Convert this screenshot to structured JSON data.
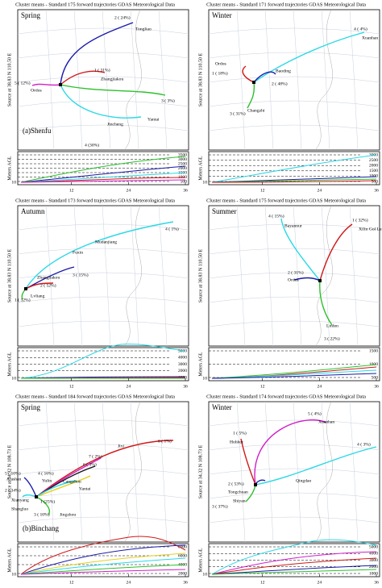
{
  "panels": [
    {
      "title": "Cluster means - Standard 175 forward trajectories GDAS Meteorological Data",
      "season": "Spring",
      "source_text": "Source   at   38.83 N   110.50 E",
      "site": "(a)Shenfu",
      "clusters": [
        "2 ( 24%)",
        "1 ( 31%)",
        "3 ( 3%)",
        "4 (30%)",
        "5 ( 12%)"
      ],
      "places": [
        "Tongliao",
        "Zhangjiakou",
        "Yantai",
        "Jincheng",
        "Ordos"
      ],
      "height_ticks": [
        "3500",
        "3000",
        "2500",
        "2000",
        "1500",
        "1000",
        "500"
      ],
      "x_ticks": [
        "12",
        "24",
        "36"
      ],
      "base": "10",
      "y_label": "Meters AGL"
    },
    {
      "title": "Cluster means - Standard 171 forward trajectories GDAS Meteorological Data",
      "season": "Winter",
      "source_text": "Source   at   38.83 N   110.50 E",
      "clusters": [
        "4 ( 4%)",
        "1 ( 18%)",
        "2 ( 48%)",
        "3 ( 31%)"
      ],
      "places": [
        "Xuanhan",
        "Ordos",
        "Baoding",
        "Changzhi"
      ],
      "height_ticks": [
        "3000",
        "2500",
        "2000",
        "1500",
        "1000",
        "500"
      ],
      "x_ticks": [
        "12",
        "24",
        "36"
      ],
      "base": "10",
      "y_label": "Meters AGL"
    },
    {
      "title": "Cluster means - Standard 173 forward trajectories GDAS Meteorological Data",
      "season": "Autumn",
      "source_text": "Source   at   38.83 N   110.50 E",
      "clusters": [
        "4 ( 1%)",
        "3 ( 15%)",
        "2 ( 52%)",
        "1 ( 32%)"
      ],
      "places": [
        "Mudanjiang",
        "Fuxin",
        "Zhangjiakou",
        "Lvliang"
      ],
      "height_ticks": [
        "5000",
        "4000",
        "3000",
        "2000",
        "1000"
      ],
      "x_ticks": [
        "12",
        "24",
        "36"
      ],
      "base": "10",
      "y_label": "Meters AGL"
    },
    {
      "title": "Cluster means - Standard 175 forward trajectories GDAS Meteorological Data",
      "season": "Summer",
      "source_text": "Source   at   38.83 N   110.50 E",
      "clusters": [
        "4 ( 15%)",
        "1 ( 32%)",
        "2 ( 31%)",
        "3 ( 22%)"
      ],
      "places": [
        "Bayannur",
        "Xilin Gol League",
        "Ordos",
        "Linfen"
      ],
      "height_ticks": [
        "1500",
        "1000",
        "500"
      ],
      "x_ticks": [
        "12",
        "24",
        "36"
      ],
      "base": "10",
      "y_label": "Meters AGL"
    },
    {
      "title": "Cluster means - Standard 184 forward trajectories GDAS Meteorological Data",
      "season": "Spring",
      "source_text": "Source   at   34.32 N   108.73 E",
      "site": "(b)Binchang",
      "clusters": [
        "8 ( 1%)",
        "7 ( 2%)",
        "6 ( 3%)",
        "5 ( 10%)",
        "4 ( 16%)",
        "2 ( 34%)",
        "1 (25%)",
        "3 ( 10%)"
      ],
      "places": [
        "Jixi",
        "Cangzhou",
        "Yantai",
        "Alashan",
        "Yulin",
        "Xianyang",
        "Shangluo",
        "Jingzhou"
      ],
      "height_ticks": [
        "8000",
        "6000",
        "4000",
        "2000"
      ],
      "x_ticks": [
        "12",
        "24",
        "36"
      ],
      "base": "10",
      "y_label": "Meters AGL"
    },
    {
      "title": "Cluster means - Standard 174 forward trajectories GDAS Meteorological Data",
      "season": "Winter",
      "source_text": "Source   at   34.32 N   108.73 E",
      "clusters": [
        "5 ( 4%)",
        "1 ( 5%)",
        "2 ( 53%)",
        "4 ( 3%)",
        "3 ( 37%)"
      ],
      "places": [
        "Xuanhan",
        "Hohhot",
        "Tongchuan",
        "Qingdao",
        "Shiyan"
      ],
      "height_ticks": [
        "5000",
        "4000",
        "3000",
        "2000",
        "1000"
      ],
      "x_ticks": [
        "12",
        "24",
        "36"
      ],
      "base": "10",
      "y_label": "Meters AGL"
    }
  ]
}
